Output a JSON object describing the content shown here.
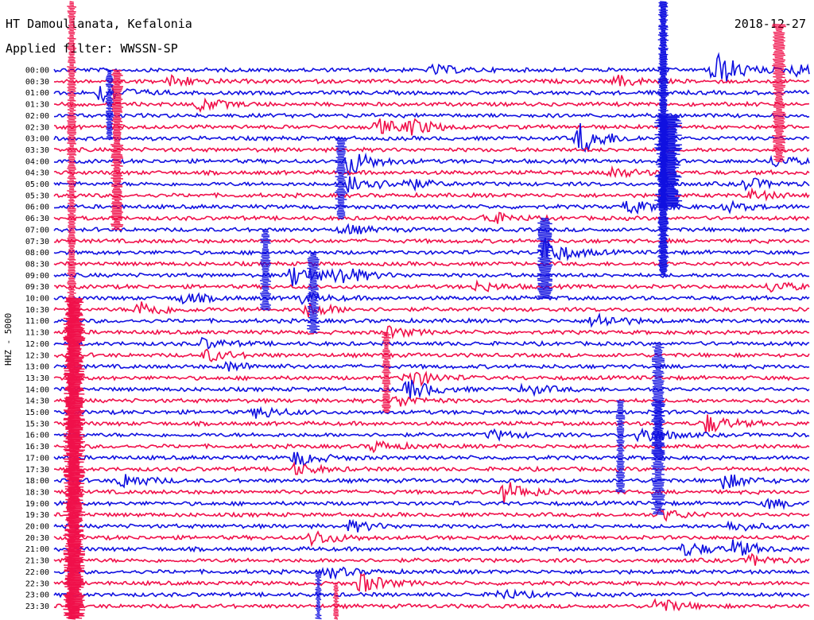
{
  "header": {
    "station": "HT Damoulianata, Kefalonia",
    "date": "2018-12-27",
    "filter": "Applied filter: WWSSN-SP",
    "channel": "HHZ - 5000"
  },
  "colors": {
    "trace_a": "#1010e0",
    "trace_b": "#f0104a",
    "background": "#ffffff",
    "text": "#000000"
  },
  "chart_data": {
    "type": "helicorder",
    "title": "HT Damoulianata, Kefalonia",
    "ylabel": "HHZ - 5000",
    "row_labels": [
      "00:00",
      "00:30",
      "01:00",
      "01:30",
      "02:00",
      "02:30",
      "03:00",
      "03:30",
      "04:00",
      "04:30",
      "05:00",
      "05:30",
      "06:00",
      "06:30",
      "07:00",
      "07:30",
      "08:00",
      "08:30",
      "09:00",
      "09:30",
      "10:00",
      "10:30",
      "11:00",
      "11:30",
      "12:00",
      "12:30",
      "13:00",
      "13:30",
      "14:00",
      "14:30",
      "15:00",
      "15:30",
      "16:00",
      "16:30",
      "17:00",
      "17:30",
      "18:00",
      "18:30",
      "19:00",
      "19:30",
      "20:00",
      "20:30",
      "21:00",
      "21:30",
      "22:00",
      "22:30",
      "23:00",
      "23:30"
    ],
    "row_minutes": 30,
    "trace_colors": [
      "#1010e0",
      "#f0104a"
    ],
    "events": [
      {
        "row": 0,
        "minute": 15.1,
        "amp": 1.2,
        "color": 0
      },
      {
        "row": 0,
        "minute": 26.2,
        "amp": 5,
        "color": 0
      },
      {
        "row": 0,
        "minute": 29.4,
        "amp": 1.5,
        "color": 0
      },
      {
        "row": 1,
        "minute": 4.7,
        "amp": 1.5,
        "color": 1
      },
      {
        "row": 1,
        "minute": 22.4,
        "amp": 1.3,
        "color": 1
      },
      {
        "row": 2,
        "minute": 1.9,
        "amp": 2.5,
        "color": 0
      },
      {
        "row": 3,
        "minute": 5.8,
        "amp": 1.6,
        "color": 1
      },
      {
        "row": 5,
        "minute": 12.9,
        "amp": 1.8,
        "color": 1
      },
      {
        "row": 5,
        "minute": 14.2,
        "amp": 1.8,
        "color": 1
      },
      {
        "row": 6,
        "minute": 20.9,
        "amp": 4,
        "color": 0
      },
      {
        "row": 8,
        "minute": 11.7,
        "amp": 3.5,
        "color": 0
      },
      {
        "row": 8,
        "minute": 28.6,
        "amp": 1.4,
        "color": 0
      },
      {
        "row": 9,
        "minute": 22.1,
        "amp": 1.4,
        "color": 1
      },
      {
        "row": 10,
        "minute": 11.8,
        "amp": 3,
        "color": 0
      },
      {
        "row": 10,
        "minute": 13.9,
        "amp": 1.4,
        "color": 0
      },
      {
        "row": 10,
        "minute": 27.5,
        "amp": 1.5,
        "color": 0
      },
      {
        "row": 11,
        "minute": 27.7,
        "amp": 1.2,
        "color": 1
      },
      {
        "row": 12,
        "minute": 22.8,
        "amp": 1.7,
        "color": 0
      },
      {
        "row": 12,
        "minute": 26.6,
        "amp": 1.3,
        "color": 0
      },
      {
        "row": 13,
        "minute": 17.2,
        "amp": 1.7,
        "color": 1
      },
      {
        "row": 14,
        "minute": 11.5,
        "amp": 1.3,
        "color": 0
      },
      {
        "row": 16,
        "minute": 19.5,
        "amp": 3.5,
        "color": 0
      },
      {
        "row": 18,
        "minute": 9.5,
        "amp": 3,
        "color": 0
      },
      {
        "row": 18,
        "minute": 11.3,
        "amp": 2.5,
        "color": 0
      },
      {
        "row": 19,
        "minute": 16.8,
        "amp": 1.2,
        "color": 1
      },
      {
        "row": 19,
        "minute": 28.5,
        "amp": 1.3,
        "color": 1
      },
      {
        "row": 20,
        "minute": 5.1,
        "amp": 1.4,
        "color": 0
      },
      {
        "row": 20,
        "minute": 9.8,
        "amp": 1.3,
        "color": 0
      },
      {
        "row": 21,
        "minute": 3.4,
        "amp": 2.2,
        "color": 1
      },
      {
        "row": 21,
        "minute": 10.1,
        "amp": 1.8,
        "color": 1
      },
      {
        "row": 22,
        "minute": 21.5,
        "amp": 2,
        "color": 0
      },
      {
        "row": 23,
        "minute": 13.3,
        "amp": 1.3,
        "color": 1
      },
      {
        "row": 24,
        "minute": 5.9,
        "amp": 1.3,
        "color": 0
      },
      {
        "row": 25,
        "minute": 6.1,
        "amp": 1.5,
        "color": 1
      },
      {
        "row": 26,
        "minute": 6.9,
        "amp": 1.2,
        "color": 0
      },
      {
        "row": 27,
        "minute": 14.1,
        "amp": 2.5,
        "color": 1
      },
      {
        "row": 28,
        "minute": 14.1,
        "amp": 2.5,
        "color": 0
      },
      {
        "row": 28,
        "minute": 18.7,
        "amp": 1.4,
        "color": 0
      },
      {
        "row": 29,
        "minute": 13.6,
        "amp": 1.5,
        "color": 1
      },
      {
        "row": 30,
        "minute": 8.1,
        "amp": 1.6,
        "color": 0
      },
      {
        "row": 31,
        "minute": 25.9,
        "amp": 2.5,
        "color": 1
      },
      {
        "row": 32,
        "minute": 17.4,
        "amp": 1.2,
        "color": 0
      },
      {
        "row": 32,
        "minute": 23.3,
        "amp": 2.5,
        "color": 0
      },
      {
        "row": 33,
        "minute": 12.7,
        "amp": 1.3,
        "color": 1
      },
      {
        "row": 34,
        "minute": 9.6,
        "amp": 2,
        "color": 1
      },
      {
        "row": 35,
        "minute": 9.6,
        "amp": 1.4,
        "color": 1
      },
      {
        "row": 36,
        "minute": 2.7,
        "amp": 2,
        "color": 0
      },
      {
        "row": 36,
        "minute": 26.6,
        "amp": 2,
        "color": 0
      },
      {
        "row": 37,
        "minute": 17.9,
        "amp": 2.8,
        "color": 1
      },
      {
        "row": 38,
        "minute": 28.4,
        "amp": 1.2,
        "color": 0
      },
      {
        "row": 39,
        "minute": 24.1,
        "amp": 1.5,
        "color": 1
      },
      {
        "row": 40,
        "minute": 11.8,
        "amp": 1.4,
        "color": 0
      },
      {
        "row": 40,
        "minute": 26.9,
        "amp": 1.3,
        "color": 0
      },
      {
        "row": 41,
        "minute": 10.3,
        "amp": 2,
        "color": 1
      },
      {
        "row": 42,
        "minute": 25.1,
        "amp": 1.8,
        "color": 0
      },
      {
        "row": 42,
        "minute": 27.0,
        "amp": 2,
        "color": 0
      },
      {
        "row": 43,
        "minute": 27.7,
        "amp": 1.3,
        "color": 1
      },
      {
        "row": 44,
        "minute": 10.9,
        "amp": 1.5,
        "color": 0
      },
      {
        "row": 45,
        "minute": 12.2,
        "amp": 2.5,
        "color": 1
      },
      {
        "row": 46,
        "minute": 17.7,
        "amp": 1.3,
        "color": 0
      },
      {
        "row": 47,
        "minute": 23.9,
        "amp": 2,
        "color": 1
      }
    ]
  }
}
